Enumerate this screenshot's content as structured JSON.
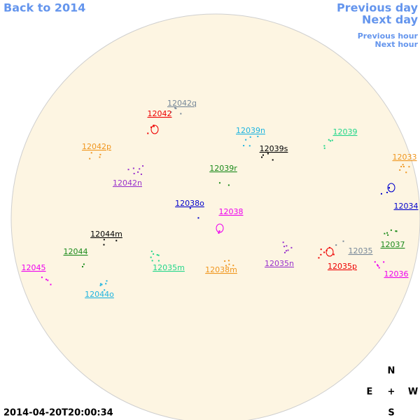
{
  "nav": {
    "back": "Back to 2014",
    "previous_day": "Previous day",
    "next_day": "Next day",
    "previous_hour": "Previous hour",
    "next_hour": "Next hour"
  },
  "regions": [
    {
      "label": "12042q",
      "color": "#778899"
    },
    {
      "label": "12042",
      "color": "#ee0000"
    },
    {
      "label": "12039n",
      "color": "#1eb4e0"
    },
    {
      "label": "12039",
      "color": "#22d68a"
    },
    {
      "label": "12042p",
      "color": "#f0961e"
    },
    {
      "label": "12039s",
      "color": "#000000"
    },
    {
      "label": "12033",
      "color": "#f0961e"
    },
    {
      "label": "12039r",
      "color": "#1a8a1a"
    },
    {
      "label": "12042n",
      "color": "#9932cc"
    },
    {
      "label": "12034",
      "color": "#0000cc"
    },
    {
      "label": "12038o",
      "color": "#0000cc"
    },
    {
      "label": "12038",
      "color": "#ee00ee"
    },
    {
      "label": "12044m",
      "color": "#000000"
    },
    {
      "label": "12037",
      "color": "#1a8a1a"
    },
    {
      "label": "12044",
      "color": "#1a8a1a"
    },
    {
      "label": "12035",
      "color": "#778899"
    },
    {
      "label": "12045",
      "color": "#ee00ee"
    },
    {
      "label": "12035m",
      "color": "#22d68a"
    },
    {
      "label": "12038m",
      "color": "#f0961e"
    },
    {
      "label": "12035n",
      "color": "#9932cc"
    },
    {
      "label": "12035p",
      "color": "#ee0000"
    },
    {
      "label": "12036",
      "color": "#ee00ee"
    },
    {
      "label": "12044o",
      "color": "#1eb4e0"
    }
  ],
  "compass": {
    "north": "N",
    "east": "E",
    "center": "+",
    "west": "W",
    "south": "S"
  },
  "timestamp": "2014-04-20T20:00:34"
}
